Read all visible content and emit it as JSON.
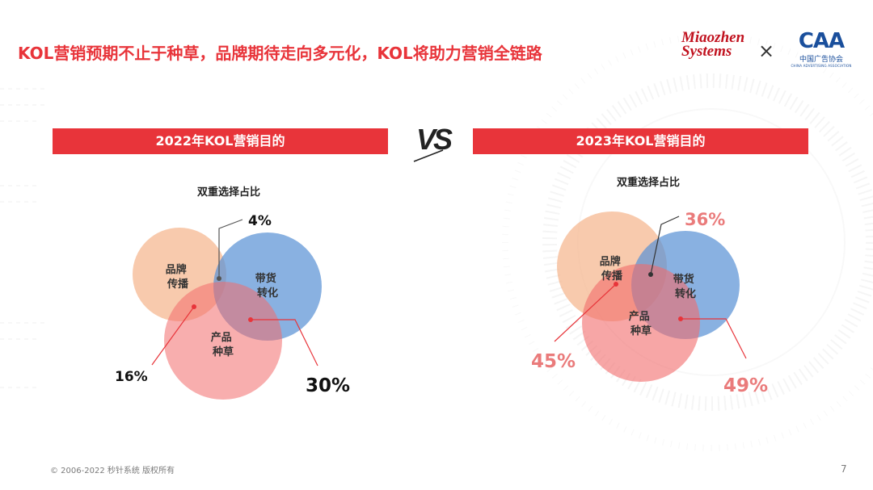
{
  "slide": {
    "title": "KOL营销预期不止于种草，品牌期待走向多元化，KOL将助力营销全链路",
    "footer": "© 2006-2022 秒针系统 版权所有",
    "page_number": "7"
  },
  "logos": {
    "miaozhen_line1": "Miaozhen",
    "miaozhen_line2": "Systems",
    "times": "×",
    "caa_letters": "CAA",
    "caa_cn": "中国广告协会",
    "caa_en": "CHINA ADVERTISING ASSOCIATION"
  },
  "vs_label": "VS",
  "left_panel": {
    "header": "2022年KOL营销目的",
    "subtitle": "双重选择占比",
    "circles": {
      "brand": "品牌\n传播",
      "sales": "带货\n转化",
      "product": "产品\n种草"
    },
    "labels": {
      "brand_sales": "4%",
      "brand_product": "16%",
      "sales_product": "30%"
    }
  },
  "right_panel": {
    "header": "2023年KOL营销目的",
    "subtitle": "双重选择占比",
    "circles": {
      "brand": "品牌\n传播",
      "sales": "带货\n转化",
      "product": "产品\n种草"
    },
    "labels": {
      "brand_sales": "36%",
      "brand_product": "45%",
      "sales_product": "49%"
    }
  },
  "colors": {
    "accent_red": "#e8343a",
    "brand_circle": "#f5b48a",
    "sales_circle": "#5b93d6",
    "product_circle": "#f26b6b",
    "label_2023": "#ea7b7b"
  }
}
